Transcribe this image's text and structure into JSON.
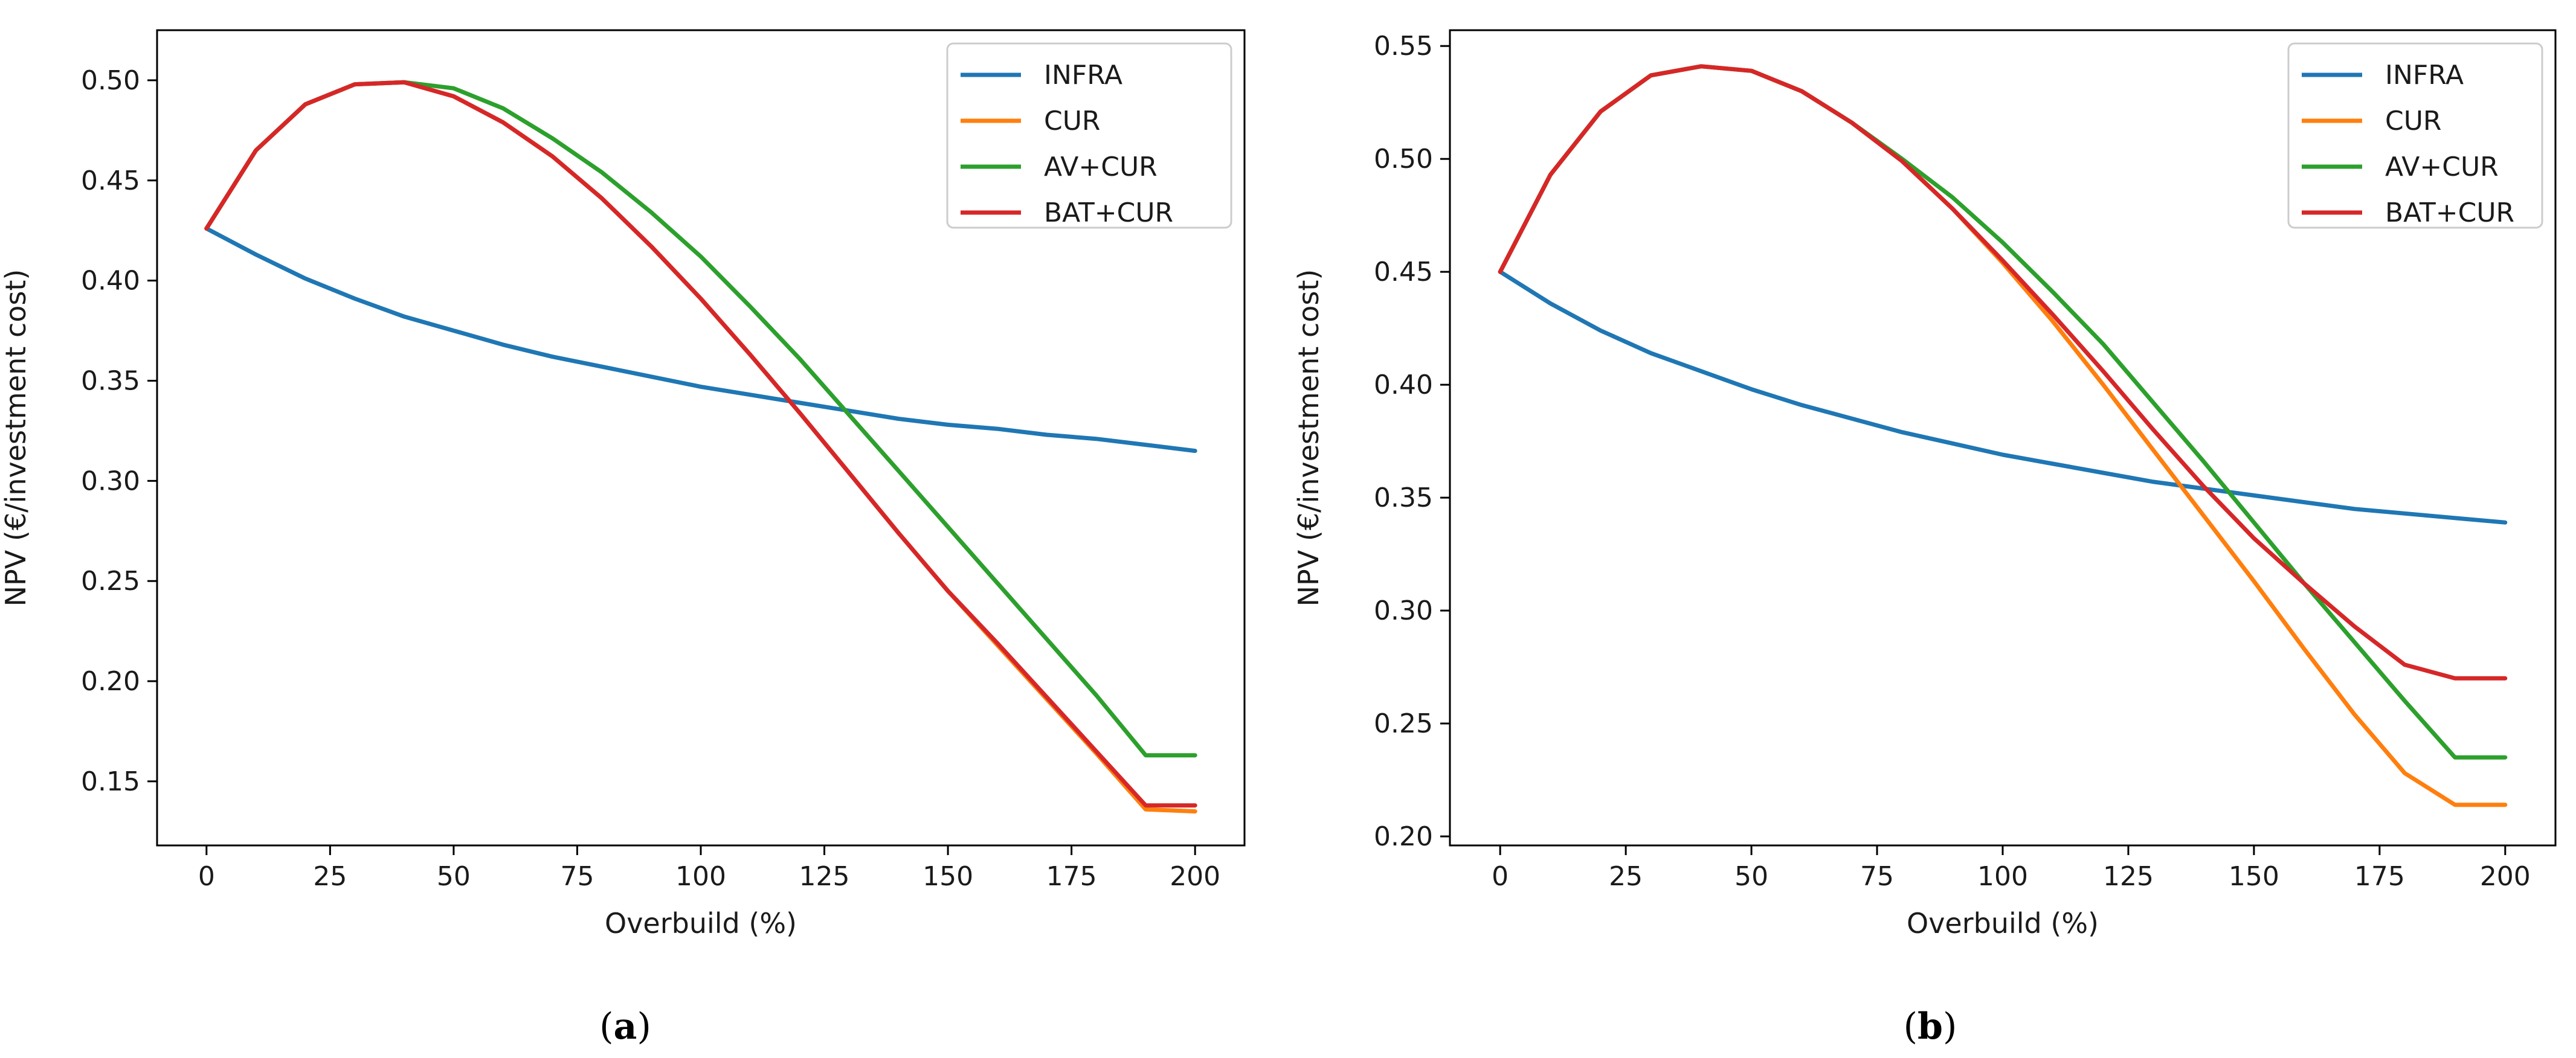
{
  "chart_data": [
    {
      "type": "line",
      "panel_label": "a",
      "title": "",
      "xlabel": "Overbuild (%)",
      "ylabel": "NPV (€/investment cost)",
      "xlim": [
        -10,
        210
      ],
      "ylim": [
        0.118,
        0.525
      ],
      "xticks": [
        0,
        25,
        50,
        75,
        100,
        125,
        150,
        175,
        200
      ],
      "yticks": [
        0.15,
        0.2,
        0.25,
        0.3,
        0.35,
        0.4,
        0.45,
        0.5
      ],
      "ytick_labels": [
        "0.15",
        "0.20",
        "0.25",
        "0.30",
        "0.35",
        "0.40",
        "0.45",
        "0.50"
      ],
      "legend_position": "top-right",
      "x": [
        0,
        10,
        20,
        30,
        40,
        50,
        60,
        70,
        80,
        90,
        100,
        110,
        120,
        130,
        140,
        150,
        160,
        170,
        180,
        190,
        200
      ],
      "series": [
        {
          "name": "INFRA",
          "color": "#1f77b4",
          "values": [
            0.426,
            0.413,
            0.401,
            0.391,
            0.382,
            0.375,
            0.368,
            0.362,
            0.357,
            0.352,
            0.347,
            0.343,
            0.339,
            0.335,
            0.331,
            0.328,
            0.326,
            0.323,
            0.321,
            0.318,
            0.315
          ]
        },
        {
          "name": "CUR",
          "color": "#ff7f0e",
          "values": [
            0.426,
            0.465,
            0.488,
            0.498,
            0.499,
            0.492,
            0.479,
            0.462,
            0.441,
            0.417,
            0.391,
            0.363,
            0.334,
            0.304,
            0.274,
            0.245,
            0.218,
            0.191,
            0.164,
            0.136,
            0.135
          ]
        },
        {
          "name": "AV+CUR",
          "color": "#2ca02c",
          "values": [
            0.426,
            0.465,
            0.488,
            0.498,
            0.499,
            0.496,
            0.486,
            0.471,
            0.454,
            0.434,
            0.412,
            0.387,
            0.361,
            0.333,
            0.305,
            0.277,
            0.249,
            0.221,
            0.193,
            0.163,
            0.163
          ]
        },
        {
          "name": "BAT+CUR",
          "color": "#d62728",
          "values": [
            0.426,
            0.465,
            0.488,
            0.498,
            0.499,
            0.492,
            0.479,
            0.462,
            0.441,
            0.417,
            0.391,
            0.363,
            0.334,
            0.304,
            0.274,
            0.245,
            0.219,
            0.192,
            0.165,
            0.138,
            0.138
          ]
        }
      ]
    },
    {
      "type": "line",
      "panel_label": "b",
      "title": "",
      "xlabel": "Overbuild (%)",
      "ylabel": "NPV (€/investment cost)",
      "xlim": [
        -10,
        210
      ],
      "ylim": [
        0.196,
        0.557
      ],
      "xticks": [
        0,
        25,
        50,
        75,
        100,
        125,
        150,
        175,
        200
      ],
      "yticks": [
        0.2,
        0.25,
        0.3,
        0.35,
        0.4,
        0.45,
        0.5,
        0.55
      ],
      "ytick_labels": [
        "0.20",
        "0.25",
        "0.30",
        "0.35",
        "0.40",
        "0.45",
        "0.50",
        "0.55"
      ],
      "legend_position": "top-right",
      "x": [
        0,
        10,
        20,
        30,
        40,
        50,
        60,
        70,
        80,
        90,
        100,
        110,
        120,
        130,
        140,
        150,
        160,
        170,
        180,
        190,
        200
      ],
      "series": [
        {
          "name": "INFRA",
          "color": "#1f77b4",
          "values": [
            0.45,
            0.436,
            0.424,
            0.414,
            0.406,
            0.398,
            0.391,
            0.385,
            0.379,
            0.374,
            0.369,
            0.365,
            0.361,
            0.357,
            0.354,
            0.351,
            0.348,
            0.345,
            0.343,
            0.341,
            0.339
          ]
        },
        {
          "name": "CUR",
          "color": "#ff7f0e",
          "values": [
            0.45,
            0.493,
            0.521,
            0.537,
            0.541,
            0.539,
            0.53,
            0.516,
            0.499,
            0.478,
            0.454,
            0.428,
            0.4,
            0.371,
            0.342,
            0.313,
            0.283,
            0.254,
            0.228,
            0.214,
            0.214
          ]
        },
        {
          "name": "AV+CUR",
          "color": "#2ca02c",
          "values": [
            0.45,
            0.493,
            0.521,
            0.537,
            0.541,
            0.539,
            0.53,
            0.516,
            0.5,
            0.483,
            0.463,
            0.441,
            0.418,
            0.392,
            0.366,
            0.339,
            0.312,
            0.286,
            0.26,
            0.235,
            0.235
          ]
        },
        {
          "name": "BAT+CUR",
          "color": "#d62728",
          "values": [
            0.45,
            0.493,
            0.521,
            0.537,
            0.541,
            0.539,
            0.53,
            0.516,
            0.499,
            0.478,
            0.455,
            0.431,
            0.406,
            0.38,
            0.355,
            0.332,
            0.312,
            0.293,
            0.276,
            0.27,
            0.27
          ]
        }
      ]
    }
  ]
}
